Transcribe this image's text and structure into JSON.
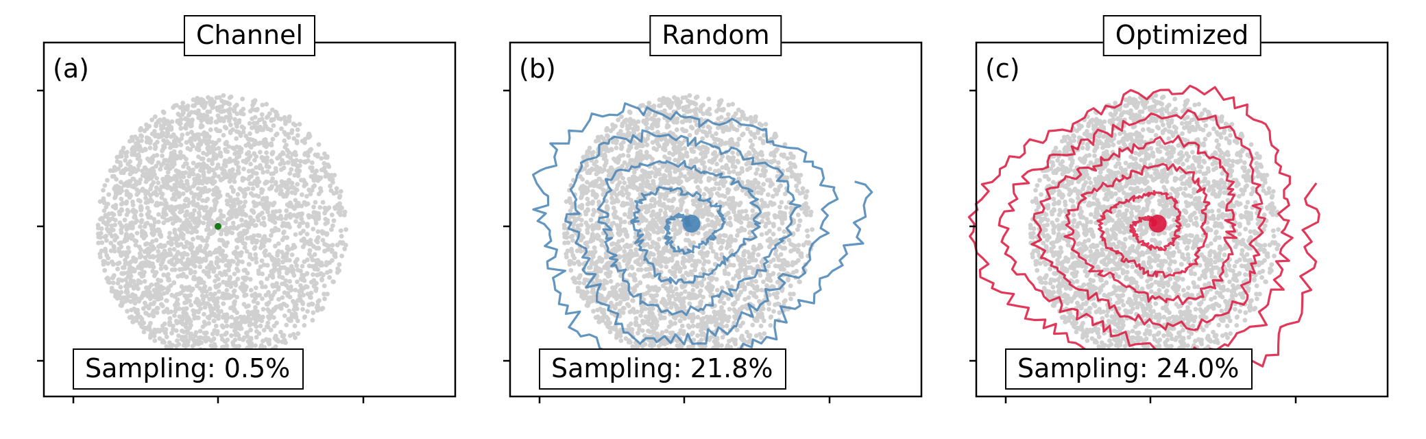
{
  "colors": {
    "background_points": "#d0d0d0",
    "channel_point": "#1a7a1a",
    "random_path": "#4682b4",
    "optimized_path": "#dc143c"
  },
  "chart_data": [
    {
      "type": "scatter",
      "title": "Channel",
      "panel_label": "(a)",
      "annotation": "Sampling: 0.5%",
      "series": [
        {
          "role": "background",
          "color": "#d0d0d0"
        },
        {
          "role": "sample",
          "color": "#1a7a1a",
          "points": [
            [
              0.0,
              0.0
            ]
          ]
        }
      ],
      "tick_labels_shown": false,
      "grid": false
    },
    {
      "type": "line",
      "title": "Random",
      "panel_label": "(b)",
      "annotation": "Sampling: 21.8%",
      "series": [
        {
          "role": "background",
          "color": "#d0d0d0"
        },
        {
          "role": "path",
          "color": "#4682b4"
        }
      ],
      "tick_labels_shown": false,
      "grid": false
    },
    {
      "type": "line",
      "title": "Optimized",
      "panel_label": "(c)",
      "annotation": "Sampling: 24.0%",
      "series": [
        {
          "role": "background",
          "color": "#d0d0d0"
        },
        {
          "role": "path",
          "color": "#dc143c"
        }
      ],
      "tick_labels_shown": false,
      "grid": false
    }
  ]
}
